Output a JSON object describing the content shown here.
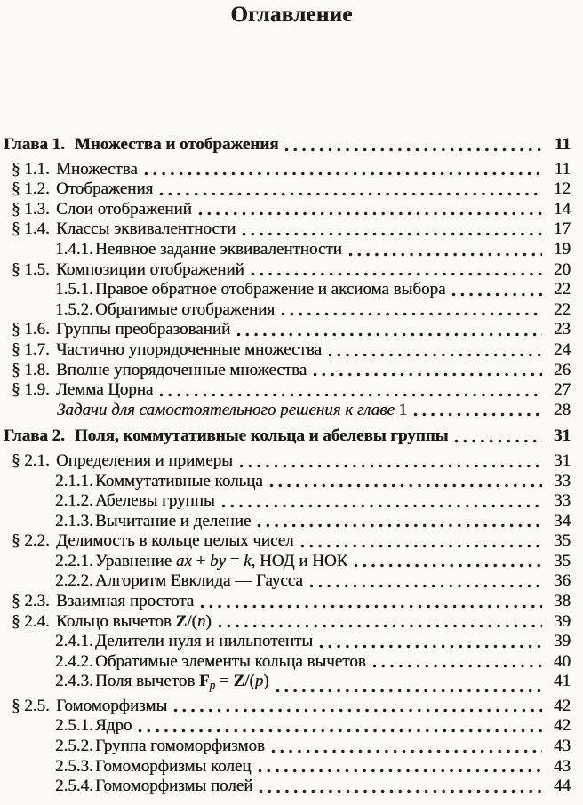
{
  "page": {
    "title": "Оглавление",
    "colors": {
      "background": "#fbfaf6",
      "text": "#1a1a1a"
    }
  },
  "toc": {
    "entries": [
      {
        "level": "chapter",
        "label": "Глава 1.",
        "title": "Множества и отображения",
        "page": "11"
      },
      {
        "level": "section",
        "label": "§ 1.1.",
        "title": "Множества",
        "page": "11"
      },
      {
        "level": "section",
        "label": "§ 1.2.",
        "title": "Отображения",
        "page": "12"
      },
      {
        "level": "section",
        "label": "§ 1.3.",
        "title": "Слои отображений",
        "page": "14"
      },
      {
        "level": "section",
        "label": "§ 1.4.",
        "title": "Классы эквивалентности",
        "page": "17"
      },
      {
        "level": "subsection",
        "label": "1.4.1.",
        "title": "Неявное задание эквивалентности",
        "page": "19"
      },
      {
        "level": "section",
        "label": "§ 1.5.",
        "title": "Композиции отображений",
        "page": "20"
      },
      {
        "level": "subsection",
        "label": "1.5.1.",
        "title": "Правое обратное отображение и аксиома выбора",
        "page": "22"
      },
      {
        "level": "subsection",
        "label": "1.5.2.",
        "title": "Обратимые отображения",
        "page": "22"
      },
      {
        "level": "section",
        "label": "§ 1.6.",
        "title": "Группы преобразований",
        "page": "23"
      },
      {
        "level": "section",
        "label": "§ 1.7.",
        "title": "Частично упорядоченные множества",
        "page": "24"
      },
      {
        "level": "section",
        "label": "§ 1.8.",
        "title": "Вполне упорядоченные множества",
        "page": "26"
      },
      {
        "level": "section",
        "label": "§ 1.9.",
        "title": "Лемма Цорна",
        "page": "27"
      },
      {
        "level": "problems",
        "label": "",
        "title_parts": [
          {
            "t": "Задачи для самостоятельного решения к главе",
            "i": 1
          },
          {
            "t": " 1"
          }
        ],
        "page": "28"
      },
      {
        "level": "chapter",
        "label": "Глава 2.",
        "title": "Поля, коммутативные кольца и абелевы группы",
        "page": "31"
      },
      {
        "level": "section",
        "label": "§ 2.1.",
        "title": "Определения и примеры",
        "page": "31"
      },
      {
        "level": "subsection",
        "label": "2.1.1.",
        "title": "Коммутативные кольца",
        "page": "33"
      },
      {
        "level": "subsection",
        "label": "2.1.2.",
        "title": "Абелевы группы",
        "page": "33"
      },
      {
        "level": "subsection",
        "label": "2.1.3.",
        "title": "Вычитание и деление",
        "page": "34"
      },
      {
        "level": "section",
        "label": "§ 2.2.",
        "title": "Делимость в кольце целых чисел",
        "page": "35"
      },
      {
        "level": "subsection",
        "label": "2.2.1.",
        "title_parts": [
          {
            "t": "Уравнение "
          },
          {
            "t": "ax",
            "i": 1
          },
          {
            "t": " + "
          },
          {
            "t": "by",
            "i": 1
          },
          {
            "t": " = "
          },
          {
            "t": "k",
            "i": 1
          },
          {
            "t": ", НОД и НОК"
          }
        ],
        "page": "35"
      },
      {
        "level": "subsection",
        "label": "2.2.2.",
        "title": "Алгоритм Евклида — Гаусса",
        "page": "36"
      },
      {
        "level": "section",
        "label": "§ 2.3.",
        "title": "Взаимная простота",
        "page": "38"
      },
      {
        "level": "section",
        "label": "§ 2.4.",
        "title_parts": [
          {
            "t": "Кольцо вычетов "
          },
          {
            "t": "Z",
            "b": 1
          },
          {
            "t": "/("
          },
          {
            "t": "n",
            "i": 1
          },
          {
            "t": ")"
          }
        ],
        "page": "39"
      },
      {
        "level": "subsection",
        "label": "2.4.1.",
        "title": "Делители нуля и нильпотенты",
        "page": "39"
      },
      {
        "level": "subsection",
        "label": "2.4.2.",
        "title": "Обратимые элементы кольца вычетов",
        "page": "40"
      },
      {
        "level": "subsection",
        "label": "2.4.3.",
        "title_parts": [
          {
            "t": "Поля вычетов "
          },
          {
            "t": "F",
            "b": 1
          },
          {
            "t": "p",
            "i": 1,
            "sub": 1
          },
          {
            "t": " = "
          },
          {
            "t": "Z",
            "b": 1
          },
          {
            "t": "/("
          },
          {
            "t": "p",
            "i": 1
          },
          {
            "t": ")"
          }
        ],
        "page": "41"
      },
      {
        "level": "section",
        "label": "§ 2.5.",
        "title": "Гомоморфизмы",
        "page": "42"
      },
      {
        "level": "subsection",
        "label": "2.5.1.",
        "title": "Ядро",
        "page": "42"
      },
      {
        "level": "subsection",
        "label": "2.5.2.",
        "title": "Группа гомоморфизмов",
        "page": "43"
      },
      {
        "level": "subsection",
        "label": "2.5.3.",
        "title": "Гомоморфизмы колец",
        "page": "43"
      },
      {
        "level": "subsection",
        "label": "2.5.4.",
        "title": "Гомоморфизмы полей",
        "page": "44"
      }
    ]
  }
}
